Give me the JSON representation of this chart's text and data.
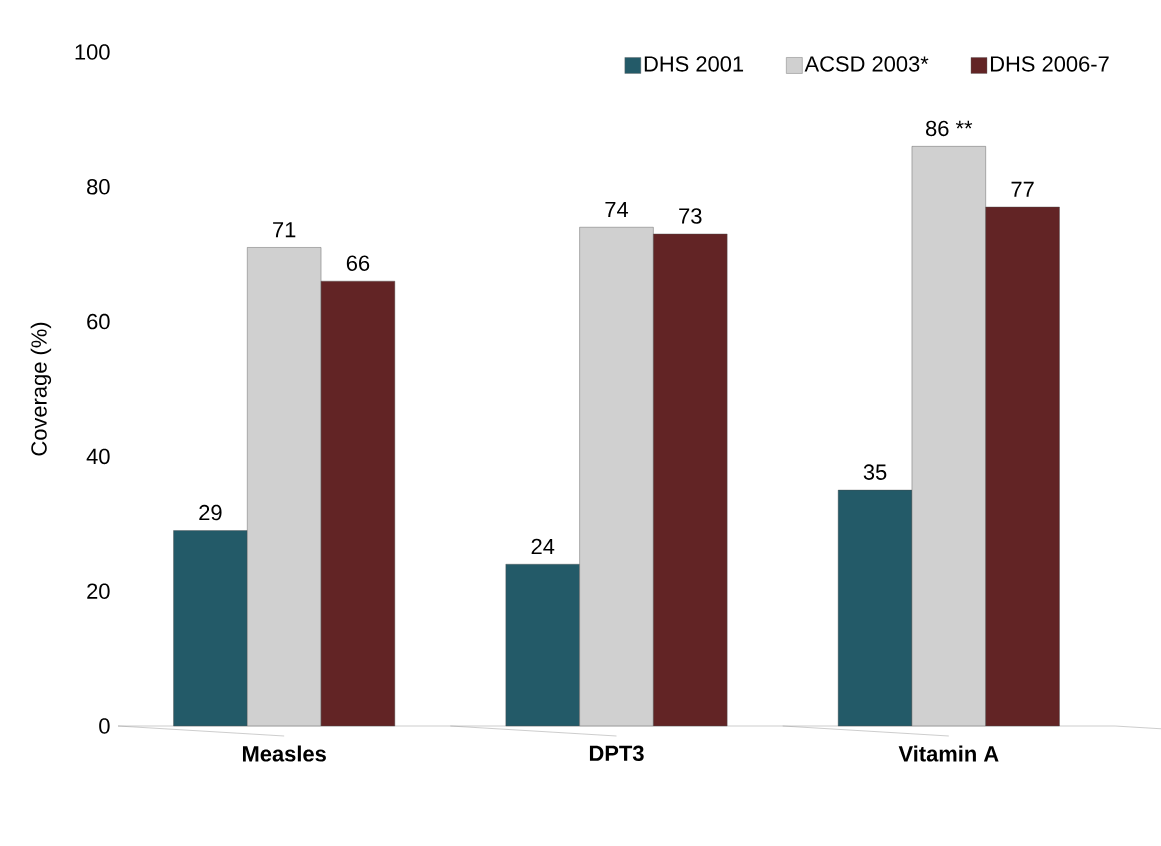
{
  "chart_data": {
    "type": "bar",
    "ylabel": "Coverage (%)",
    "categories": [
      "Measles",
      "DPT3",
      "Vitamin A"
    ],
    "series": [
      {
        "name": "DHS 2001",
        "color": "#235a68",
        "values": [
          29,
          24,
          35
        ],
        "value_labels": [
          "29",
          "24",
          "35"
        ]
      },
      {
        "name": "ACSD 2003*",
        "color": "#d0d0d0",
        "values": [
          71,
          74,
          86
        ],
        "value_labels": [
          "71",
          "74",
          "86 **"
        ]
      },
      {
        "name": "DHS 2006-7",
        "color": "#622425",
        "values": [
          66,
          73,
          77
        ],
        "value_labels": [
          "66",
          "73",
          "77"
        ]
      }
    ],
    "ylim": [
      0,
      100
    ],
    "yticks": [
      0,
      20,
      40,
      60,
      80,
      100
    ],
    "grid": false,
    "legend": "top right"
  }
}
